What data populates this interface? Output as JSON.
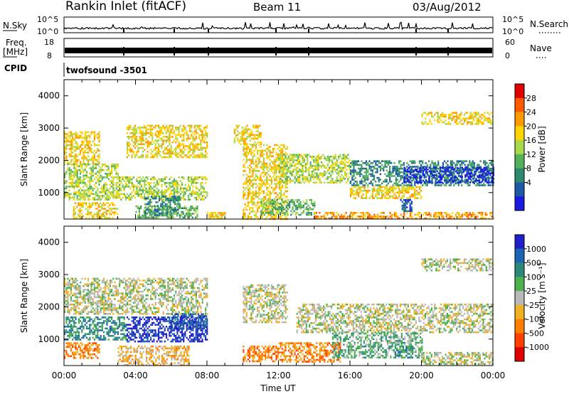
{
  "header": {
    "station": "Rankin Inlet (fitACF)",
    "beam": "Beam 11",
    "date": "03/Aug/2012"
  },
  "aux_panels": {
    "nsky": {
      "label": "N.Sky",
      "ticks": [
        "10^5",
        "10^0"
      ],
      "right_label": "N.Search",
      "right_ticks": [
        "10^5",
        "10^0"
      ]
    },
    "freq": {
      "label_line1": "Freq.",
      "label_line2": "[MHz]",
      "ticks": [
        "18",
        "8"
      ],
      "right_label": "Nave",
      "right_ticks": [
        "60",
        "0"
      ]
    },
    "cpid": {
      "label": "CPID",
      "value": "twofsound -3501"
    }
  },
  "colorbars": {
    "power": {
      "label": "Power [dB]",
      "ticks": [
        "28",
        "24",
        "20",
        "16",
        "12",
        "8",
        "4"
      ],
      "colors": [
        "#e00000",
        "#ff5a00",
        "#ff9900",
        "#ffd400",
        "#a8d84a",
        "#55b05a",
        "#2e8a6e",
        "#1c5aa8",
        "#1a1ae0"
      ]
    },
    "velocity": {
      "label": "Velocity [m s⁻¹]",
      "ticks": [
        "1000",
        "500",
        "100",
        "25",
        "-25",
        "-100",
        "-500",
        "-1000"
      ],
      "colors": [
        "#2020c8",
        "#1e64b4",
        "#2a8a7a",
        "#4cb04c",
        "#b8b8b8",
        "#f0b020",
        "#ff8000",
        "#ff4000",
        "#e00000"
      ]
    }
  },
  "chart_data": [
    {
      "type": "heatmap",
      "name": "power",
      "ylabel": "Slant Range [km]",
      "ylim": [
        180,
        4500
      ],
      "yticks": [
        1000,
        2000,
        3000,
        4000
      ],
      "xlim": [
        0,
        24
      ],
      "regions": [
        {
          "x0": 0.0,
          "x1": 2.0,
          "y0": 1900,
          "y1": 2900,
          "level": 3
        },
        {
          "x0": 0.0,
          "x1": 3.0,
          "y0": 1500,
          "y1": 1900,
          "level": 4
        },
        {
          "x0": 0.0,
          "x1": 8.0,
          "y0": 800,
          "y1": 1500,
          "level": 4
        },
        {
          "x0": 3.5,
          "x1": 8.0,
          "y0": 2100,
          "y1": 3100,
          "level": 3
        },
        {
          "x0": 4.0,
          "x1": 7.5,
          "y0": 200,
          "y1": 600,
          "level": 5
        },
        {
          "x0": 4.5,
          "x1": 6.5,
          "y0": 300,
          "y1": 900,
          "level": 6
        },
        {
          "x0": 0.5,
          "x1": 3.0,
          "y0": 200,
          "y1": 700,
          "level": 3
        },
        {
          "x0": 8.0,
          "x1": 9.0,
          "y0": 200,
          "y1": 400,
          "level": 3
        },
        {
          "x0": 9.5,
          "x1": 11.0,
          "y0": 2500,
          "y1": 3100,
          "level": 3
        },
        {
          "x0": 10.0,
          "x1": 12.5,
          "y0": 200,
          "y1": 2500,
          "level": 3
        },
        {
          "x0": 11.0,
          "x1": 14.0,
          "y0": 300,
          "y1": 800,
          "level": 5
        },
        {
          "x0": 12.0,
          "x1": 16.0,
          "y0": 1300,
          "y1": 2200,
          "level": 4
        },
        {
          "x0": 16.0,
          "x1": 24.0,
          "y0": 1200,
          "y1": 2000,
          "level": 6
        },
        {
          "x0": 19.0,
          "x1": 24.0,
          "y0": 1300,
          "y1": 1800,
          "level": 8
        },
        {
          "x0": 16.0,
          "x1": 20.0,
          "y0": 800,
          "y1": 1200,
          "level": 3
        },
        {
          "x0": 18.8,
          "x1": 19.5,
          "y0": 400,
          "y1": 800,
          "level": 7
        },
        {
          "x0": 20.0,
          "x1": 24.0,
          "y0": 3100,
          "y1": 3500,
          "level": 3
        },
        {
          "x0": 14.0,
          "x1": 24.0,
          "y0": 200,
          "y1": 400,
          "level": 2
        }
      ]
    },
    {
      "type": "heatmap",
      "name": "velocity",
      "ylabel": "Slant Range [km]",
      "xlabel": "Time UT",
      "ylim": [
        180,
        4500
      ],
      "yticks": [
        1000,
        2000,
        3000,
        4000
      ],
      "xlim": [
        0,
        24
      ],
      "xticks": [
        "00:00",
        "04:00",
        "08:00",
        "12:00",
        "16:00",
        "20:00",
        "00:00"
      ],
      "regions": [
        {
          "x0": 0.0,
          "x1": 8.0,
          "y0": 1800,
          "y1": 2900,
          "level": 4
        },
        {
          "x0": 0.0,
          "x1": 3.5,
          "y0": 1000,
          "y1": 1700,
          "level": 2
        },
        {
          "x0": 3.5,
          "x1": 8.0,
          "y0": 900,
          "y1": 1700,
          "level": 0
        },
        {
          "x0": 6.0,
          "x1": 8.0,
          "y0": 1300,
          "y1": 1800,
          "level": 1
        },
        {
          "x0": 0.0,
          "x1": 2.0,
          "y0": 400,
          "y1": 900,
          "level": 6
        },
        {
          "x0": 3.0,
          "x1": 7.0,
          "y0": 200,
          "y1": 800,
          "level": 5
        },
        {
          "x0": 10.0,
          "x1": 12.5,
          "y0": 1500,
          "y1": 2700,
          "level": 4
        },
        {
          "x0": 12.0,
          "x1": 15.5,
          "y0": 300,
          "y1": 900,
          "level": 6
        },
        {
          "x0": 10.0,
          "x1": 12.0,
          "y0": 300,
          "y1": 800,
          "level": 6
        },
        {
          "x0": 13.0,
          "x1": 24.0,
          "y0": 1200,
          "y1": 2100,
          "level": 4
        },
        {
          "x0": 15.0,
          "x1": 20.0,
          "y0": 400,
          "y1": 1200,
          "level": 3
        },
        {
          "x0": 18.5,
          "x1": 19.5,
          "y0": 400,
          "y1": 800,
          "level": 2
        },
        {
          "x0": 20.0,
          "x1": 24.0,
          "y0": 3100,
          "y1": 3500,
          "level": 4
        },
        {
          "x0": 20.0,
          "x1": 24.0,
          "y0": 200,
          "y1": 600,
          "level": 4
        }
      ]
    }
  ]
}
